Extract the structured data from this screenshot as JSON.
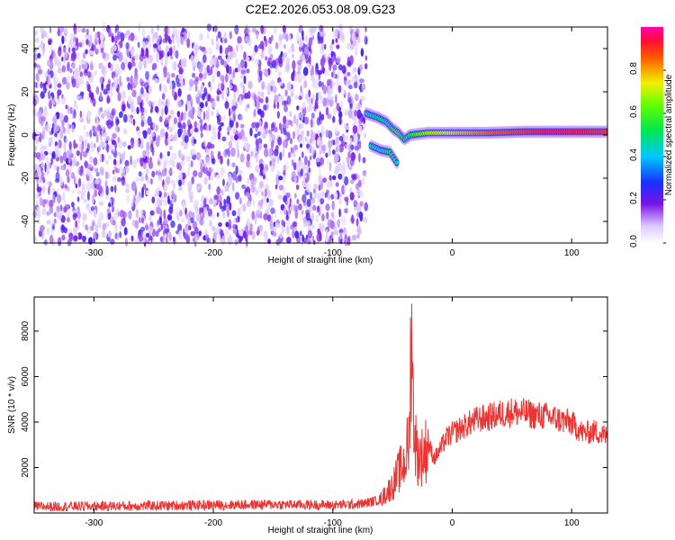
{
  "title": "C2E2.2026.053.08.09.G23",
  "chart_data": [
    {
      "type": "heatmap",
      "title": "C2E2.2026.053.08.09.G23",
      "xlabel": "Height of straight line (km)",
      "ylabel": "Frequency (Hz)",
      "xlim": [
        -350,
        130
      ],
      "ylim": [
        -50,
        50
      ],
      "x_ticks": [
        -300,
        -200,
        -100,
        0,
        100
      ],
      "y_ticks": [
        -40,
        -20,
        0,
        20,
        40
      ],
      "noise_region": {
        "x_range": [
          -350,
          -72
        ],
        "y_range": [
          -50,
          50
        ],
        "amplitude": [
          0.05,
          0.25
        ]
      },
      "signal_track": [
        {
          "x": -72,
          "y": 10,
          "amp": 0.45
        },
        {
          "x": -62,
          "y": 8,
          "amp": 0.5
        },
        {
          "x": -55,
          "y": 6,
          "amp": 0.45
        },
        {
          "x": -50,
          "y": 3,
          "amp": 0.55
        },
        {
          "x": -45,
          "y": 1,
          "amp": 0.6
        },
        {
          "x": -40,
          "y": -2,
          "amp": 0.5
        },
        {
          "x": -35,
          "y": 0,
          "amp": 0.55
        },
        {
          "x": -20,
          "y": 1,
          "amp": 0.7
        },
        {
          "x": 0,
          "y": 1,
          "amp": 0.75
        },
        {
          "x": 30,
          "y": 1,
          "amp": 0.85
        },
        {
          "x": 60,
          "y": 1.5,
          "amp": 0.9
        },
        {
          "x": 90,
          "y": 1.5,
          "amp": 0.95
        },
        {
          "x": 130,
          "y": 1.5,
          "amp": 0.9
        }
      ],
      "signal_branch": [
        {
          "x": -68,
          "y": -5,
          "amp": 0.5
        },
        {
          "x": -60,
          "y": -7,
          "amp": 0.45
        },
        {
          "x": -52,
          "y": -8,
          "amp": 0.5
        },
        {
          "x": -45,
          "y": -14,
          "amp": 0.45
        }
      ],
      "colorbar": {
        "label": "Normalized spectral amplitude",
        "range": [
          0,
          1
        ],
        "ticks": [
          "0.0",
          "0.2",
          "0.4",
          "0.6",
          "0.8"
        ],
        "tick_values": [
          0,
          0.2,
          0.4,
          0.6,
          0.8
        ],
        "colormap": "rainbow (white, purple, blue, cyan, green, yellow, red, magenta)"
      }
    },
    {
      "type": "line",
      "xlabel": "Height of straight line (km)",
      "ylabel": "SNR (10 * v/v)",
      "xlim": [
        -350,
        130
      ],
      "ylim": [
        0,
        9500
      ],
      "x_ticks": [
        -300,
        -200,
        -100,
        0,
        100
      ],
      "y_ticks": [
        2000,
        4000,
        6000,
        8000
      ],
      "series": [
        {
          "color": "#ee3333",
          "x": [
            -350,
            -300,
            -250,
            -200,
            -150,
            -100,
            -75,
            -60,
            -50,
            -45,
            -40,
            -36,
            -35,
            -34,
            -33,
            -30,
            -25,
            -20,
            -15,
            -10,
            -5,
            0,
            10,
            20,
            30,
            40,
            50,
            60,
            70,
            80,
            90,
            100,
            110,
            120,
            130
          ],
          "y": [
            280,
            300,
            320,
            350,
            380,
            350,
            400,
            600,
            1200,
            1800,
            2200,
            3200,
            6000,
            9500,
            5000,
            2600,
            2500,
            3000,
            2400,
            2800,
            3300,
            3500,
            3800,
            4100,
            4200,
            4350,
            4450,
            4400,
            4300,
            4250,
            4100,
            3950,
            3500,
            3600,
            3350
          ]
        }
      ]
    }
  ]
}
